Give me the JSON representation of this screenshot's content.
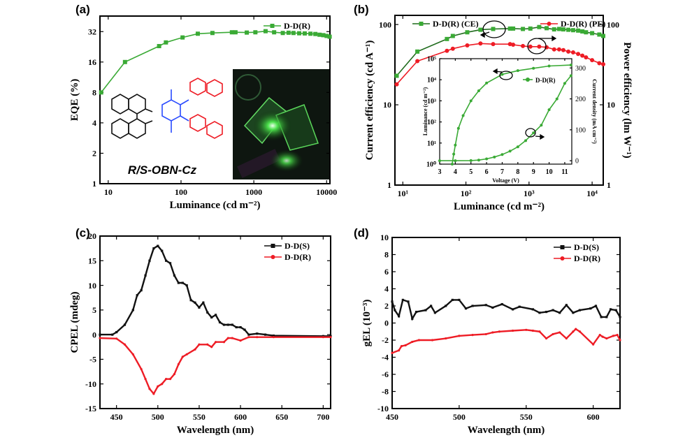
{
  "panels": {
    "a": {
      "label": "(a)"
    },
    "b": {
      "label": "(b)"
    },
    "c": {
      "label": "(c)"
    },
    "d": {
      "label": "(d)"
    }
  },
  "molecule_label": "R/S-OBN-Cz",
  "colors": {
    "green": "#3aaa35",
    "dark_green": "#1f6b1c",
    "red": "#ee1c25",
    "black": "#111111"
  },
  "chart_data": [
    {
      "id": "a",
      "type": "line",
      "xlabel": "Luminance (cd m⁻²)",
      "ylabel": "EQE (%)",
      "xscale": "log",
      "yscale": "log2",
      "xlim": [
        7.7,
        11100
      ],
      "ylim": [
        1,
        45.6
      ],
      "xticks": [
        10,
        100,
        1000,
        10000
      ],
      "xticklabels": [
        "10",
        "100",
        "1000",
        "10000"
      ],
      "yticks": [
        1,
        2,
        4,
        8,
        16,
        32
      ],
      "yticklabels": [
        "1",
        "2",
        "4",
        "8",
        "16",
        "32"
      ],
      "legend": "top-right",
      "series": [
        {
          "name": "D-D(R)",
          "color": "#3aaa35",
          "marker": "square",
          "x": [
            8,
            17,
            50,
            62,
            105,
            170,
            270,
            500,
            560,
            800,
            1050,
            1450,
            1900,
            2500,
            3000,
            3500,
            4200,
            5000,
            6000,
            7000,
            8000,
            9000,
            10000,
            11000
          ],
          "y": [
            8,
            16,
            23,
            25,
            28,
            30.5,
            31,
            31.5,
            31.5,
            31.3,
            31.5,
            32.3,
            31.5,
            31,
            31.2,
            31,
            30.8,
            30.7,
            30.5,
            30.3,
            29.8,
            29.5,
            29,
            28.5
          ]
        }
      ]
    },
    {
      "id": "b",
      "type": "line",
      "xlabel": "Luminance (cd m⁻²)",
      "ylabel": "Current efficiency (cd A⁻¹)",
      "y2label": "Power efficiency (lm W⁻¹)",
      "xscale": "log",
      "yscale": "log",
      "xlim": [
        7.5,
        15000
      ],
      "ylim": [
        1,
        130
      ],
      "y2lim": [
        1,
        130
      ],
      "xticks": [
        10,
        100,
        1000,
        10000
      ],
      "xticklabels": [
        "10¹",
        "10²",
        "10³",
        "10⁴"
      ],
      "yticks": [
        1,
        10,
        100
      ],
      "yticklabels": [
        "1",
        "10",
        "100"
      ],
      "legend": "top",
      "series": [
        {
          "name": "D-D(R) (CE)",
          "color": "#3aaa35",
          "line_color": "#1f6b1c",
          "marker": "square",
          "axis": "left",
          "x": [
            8,
            17,
            50,
            62,
            105,
            170,
            270,
            500,
            560,
            800,
            1050,
            1450,
            1900,
            2500,
            3000,
            3500,
            4200,
            5000,
            6000,
            7000,
            8000,
            10000,
            13000,
            15000
          ],
          "y": [
            23,
            46,
            66,
            72,
            80,
            86,
            88,
            89,
            89,
            88,
            89,
            93,
            90,
            87,
            88,
            87,
            86,
            85,
            84,
            82,
            80,
            78,
            75,
            72
          ]
        },
        {
          "name": "D-D(R) (PE)",
          "color": "#ee1c25",
          "marker": "circle",
          "axis": "right",
          "x": [
            8,
            17,
            50,
            62,
            105,
            170,
            270,
            500,
            560,
            800,
            1050,
            1450,
            1900,
            2500,
            3000,
            3500,
            4200,
            5000,
            6000,
            7000,
            8000,
            10000,
            13000,
            15000
          ],
          "y": [
            18,
            35,
            47,
            50,
            55,
            58,
            57,
            57,
            56,
            54,
            53,
            53,
            52,
            49,
            49,
            48,
            46,
            45,
            43,
            41,
            39,
            36,
            33,
            32
          ]
        }
      ]
    },
    {
      "id": "b-inset",
      "type": "line",
      "xlabel": "Voltage (V)",
      "ylabel": "Luminance (cd m⁻²)",
      "y2label": "Current density (mA cm⁻²)",
      "xscale": "linear",
      "yscale": "log",
      "y2scale": "linear",
      "xlim": [
        3,
        11.45
      ],
      "ylim": [
        1,
        100000
      ],
      "y2lim": [
        -11,
        330
      ],
      "xticks": [
        3,
        4,
        5,
        6,
        7,
        8,
        9,
        10,
        11
      ],
      "xticklabels": [
        "3",
        "4",
        "5",
        "6",
        "7",
        "8",
        "9",
        "10",
        "11"
      ],
      "yticks": [
        1,
        10,
        100,
        1000,
        10000,
        100000
      ],
      "yticklabels": [
        "10⁰",
        "10¹",
        "10²",
        "10³",
        "10⁴",
        "10⁵"
      ],
      "y2ticks": [
        0,
        100,
        200,
        300
      ],
      "y2ticklabels": [
        "0",
        "100",
        "200",
        "300"
      ],
      "legend": "top-right",
      "series": [
        {
          "name": "D-D(R)",
          "color": "#3aaa35",
          "marker": "circle",
          "axis": "left",
          "x": [
            3.8,
            3.9,
            4.0,
            4.2,
            4.5,
            5.0,
            5.5,
            6.0,
            7.0,
            8.0,
            9.0,
            10.0,
            11.4
          ],
          "y": [
            1,
            3,
            8,
            50,
            200,
            1000,
            3000,
            7000,
            18000,
            27000,
            35000,
            45000,
            50000
          ]
        },
        {
          "name": "",
          "color": "#3aaa35",
          "marker": "circle",
          "axis": "right",
          "x": [
            3,
            4,
            5,
            5.5,
            6,
            6.5,
            7,
            7.5,
            8,
            8.5,
            9,
            9.5,
            10,
            10.5,
            11,
            11.4
          ],
          "y": [
            0,
            0,
            0.5,
            2,
            6,
            12,
            20,
            31,
            45,
            65,
            90,
            115,
            165,
            200,
            250,
            275
          ]
        }
      ]
    },
    {
      "id": "c",
      "type": "line",
      "xlabel": "Wavelength (nm)",
      "ylabel": "CPEL (mdeg)",
      "xscale": "linear",
      "yscale": "linear",
      "xlim": [
        430,
        709
      ],
      "ylim": [
        -15,
        20
      ],
      "xticks": [
        450,
        500,
        550,
        600,
        650,
        700
      ],
      "xticklabels": [
        "450",
        "500",
        "550",
        "600",
        "650",
        "700"
      ],
      "yticks": [
        -15,
        -10,
        -5,
        0,
        5,
        10,
        15,
        20
      ],
      "yticklabels": [
        "-15",
        "-10",
        "-5",
        "0",
        "5",
        "10",
        "15",
        "20"
      ],
      "legend": "top-right",
      "series": [
        {
          "name": "D-D(S)",
          "color": "#111111",
          "marker": "square",
          "x": [
            430,
            445,
            450,
            460,
            470,
            475,
            480,
            485,
            490,
            495,
            500,
            505,
            510,
            515,
            520,
            525,
            530,
            535,
            540,
            545,
            550,
            555,
            560,
            565,
            570,
            575,
            580,
            585,
            590,
            595,
            600,
            605,
            610,
            620,
            630,
            640,
            700,
            709
          ],
          "y": [
            0,
            0,
            0.5,
            2,
            5,
            8,
            9,
            12,
            15,
            17.5,
            18,
            17,
            15,
            14.5,
            12,
            10.5,
            10.5,
            10,
            7,
            6.5,
            5.5,
            6.5,
            4.5,
            3.5,
            4,
            2.5,
            2,
            2,
            2,
            1.5,
            1.5,
            1,
            0,
            0.2,
            0,
            -0.2,
            -0.3,
            -0.3
          ]
        },
        {
          "name": "D-D(R)",
          "color": "#ee1c25",
          "marker": "circle",
          "x": [
            430,
            450,
            460,
            470,
            480,
            485,
            490,
            495,
            500,
            505,
            510,
            515,
            520,
            525,
            530,
            535,
            545,
            550,
            560,
            565,
            570,
            580,
            585,
            590,
            600,
            610,
            620,
            640,
            700,
            709
          ],
          "y": [
            -0.7,
            -0.8,
            -2,
            -4,
            -7,
            -9,
            -11,
            -12,
            -10.5,
            -10,
            -9,
            -9,
            -8,
            -6,
            -4.5,
            -4,
            -3,
            -2,
            -2,
            -2.5,
            -1.5,
            -1.5,
            -0.7,
            -0.7,
            -1.2,
            -0.5,
            -0.5,
            -0.5,
            -0.5,
            -0.5
          ]
        }
      ]
    },
    {
      "id": "d",
      "type": "line",
      "xlabel": "Wavelength (nm)",
      "ylabel": "gEL (10⁻³)",
      "xscale": "linear",
      "yscale": "linear",
      "xlim": [
        450,
        620
      ],
      "ylim": [
        -10,
        10
      ],
      "xticks": [
        450,
        500,
        550,
        600
      ],
      "xticklabels": [
        "450",
        "500",
        "550",
        "600"
      ],
      "yticks": [
        -10,
        -8,
        -6,
        -4,
        -2,
        0,
        2,
        4,
        6,
        8,
        10
      ],
      "yticklabels": [
        "-10",
        "-8",
        "-6",
        "-4",
        "-2",
        "0",
        "2",
        "4",
        "6",
        "8",
        "10"
      ],
      "legend": "top-right",
      "series": [
        {
          "name": "D-D(S)",
          "color": "#111111",
          "marker": "square",
          "x": [
            450,
            452,
            455,
            458,
            462,
            465,
            468,
            475,
            479,
            482,
            490,
            495,
            500,
            505,
            510,
            520,
            525,
            532,
            540,
            545,
            555,
            560,
            565,
            570,
            575,
            580,
            585,
            590,
            598,
            602,
            606,
            610,
            613,
            617,
            620
          ],
          "y": [
            2.5,
            1.5,
            0.8,
            2.7,
            2.5,
            0.5,
            1.3,
            1.5,
            2,
            1.2,
            2,
            2.7,
            2.7,
            1.7,
            2,
            2.1,
            1.8,
            2.2,
            1.6,
            1.9,
            1.6,
            1.2,
            1.3,
            1.5,
            1.2,
            2.1,
            1.2,
            1.5,
            1.7,
            2,
            0.7,
            0.7,
            1.6,
            1.5,
            0.7
          ]
        },
        {
          "name": "D-D(R)",
          "color": "#ee1c25",
          "marker": "circle",
          "x": [
            450,
            455,
            457,
            460,
            465,
            470,
            480,
            490,
            500,
            510,
            520,
            525,
            530,
            540,
            550,
            555,
            560,
            565,
            570,
            575,
            580,
            585,
            587,
            590,
            600,
            605,
            607,
            610,
            615,
            618,
            620
          ],
          "y": [
            -3.5,
            -3.2,
            -2.7,
            -2.6,
            -2.2,
            -2,
            -2,
            -1.8,
            -1.5,
            -1.4,
            -1.3,
            -1.1,
            -1,
            -0.9,
            -0.8,
            -0.9,
            -1,
            -1.8,
            -1.3,
            -1.1,
            -1.8,
            -1,
            -0.7,
            -1,
            -2.5,
            -1.4,
            -1.6,
            -1.8,
            -1.5,
            -1.4,
            -2
          ]
        }
      ]
    }
  ]
}
